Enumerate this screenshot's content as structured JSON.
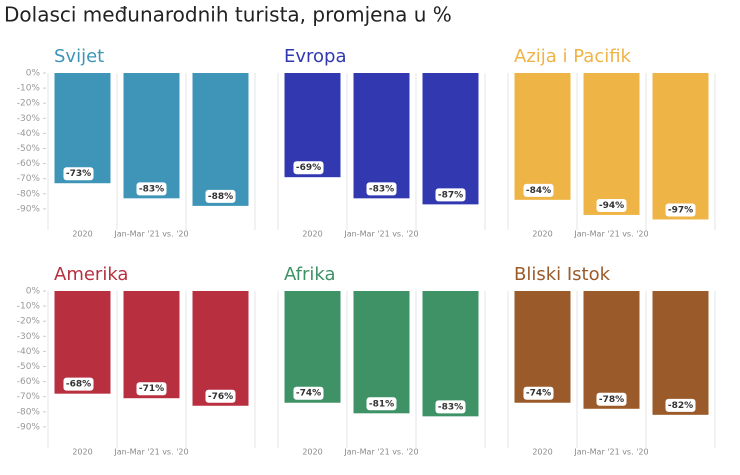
{
  "title": "Dolasci međunarodnih turista, promjena u %",
  "chart_data": [
    {
      "type": "bar",
      "title": "Svijet",
      "categories": [
        "2020",
        "Jan-Mar '21 vs. '20",
        null
      ],
      "values": [
        -73,
        -83,
        -88
      ],
      "value_labels": [
        "-73%",
        "-83%",
        "-88%"
      ],
      "color": "#3e95b8",
      "ylim": [
        -100,
        0
      ],
      "yticks": [
        {
          "value": 0,
          "label": "0%"
        },
        {
          "value": -10,
          "label": "-10%"
        },
        {
          "value": -20,
          "label": "-20%"
        },
        {
          "value": -30,
          "label": "-30%"
        },
        {
          "value": -40,
          "label": "-40%"
        },
        {
          "value": -50,
          "label": "-50%"
        },
        {
          "value": -60,
          "label": "-60%"
        },
        {
          "value": -70,
          "label": "-70%"
        },
        {
          "value": -80,
          "label": "-80%"
        },
        {
          "value": -90,
          "label": "-90%"
        }
      ]
    },
    {
      "type": "bar",
      "title": "Evropa",
      "categories": [
        "2020",
        "Jan-Mar '21 vs. '20",
        null
      ],
      "values": [
        -69,
        -83,
        -87
      ],
      "value_labels": [
        "-69%",
        "-83%",
        "-87%"
      ],
      "color": "#3239b0",
      "ylim": [
        -100,
        0
      ]
    },
    {
      "type": "bar",
      "title": "Azija i Pacifik",
      "categories": [
        "2020",
        "Jan-Mar '21 vs. '20",
        null
      ],
      "values": [
        -84,
        -94,
        -97
      ],
      "value_labels": [
        "-84%",
        "-94%",
        "-97%"
      ],
      "color": "#eeb446",
      "ylim": [
        -100,
        0
      ]
    },
    {
      "type": "bar",
      "title": "Amerika",
      "categories": [
        "2020",
        "Jan-Mar '21 vs. '20",
        null
      ],
      "values": [
        -68,
        -71,
        -76
      ],
      "value_labels": [
        "-68%",
        "-71%",
        "-76%"
      ],
      "color": "#b83040",
      "ylim": [
        -100,
        0
      ],
      "yticks": [
        {
          "value": 0,
          "label": "0%"
        },
        {
          "value": -10,
          "label": "-10%"
        },
        {
          "value": -20,
          "label": "-20%"
        },
        {
          "value": -30,
          "label": "-30%"
        },
        {
          "value": -40,
          "label": "-40%"
        },
        {
          "value": -50,
          "label": "-50%"
        },
        {
          "value": -60,
          "label": "-60%"
        },
        {
          "value": -70,
          "label": "-70%"
        },
        {
          "value": -80,
          "label": "-80%"
        },
        {
          "value": -90,
          "label": "-90%"
        }
      ]
    },
    {
      "type": "bar",
      "title": "Afrika",
      "categories": [
        "2020",
        "Jan-Mar '21 vs. '20",
        null
      ],
      "values": [
        -74,
        -81,
        -83
      ],
      "value_labels": [
        "-74%",
        "-81%",
        "-83%"
      ],
      "color": "#3e9265",
      "ylim": [
        -100,
        0
      ]
    },
    {
      "type": "bar",
      "title": "Bliski Istok",
      "categories": [
        "2020",
        "Jan-Mar '21 vs. '20",
        null
      ],
      "values": [
        -74,
        -78,
        -82
      ],
      "value_labels": [
        "-74%",
        "-78%",
        "-82%"
      ],
      "color": "#9b5a2a",
      "ylim": [
        -100,
        0
      ]
    }
  ]
}
